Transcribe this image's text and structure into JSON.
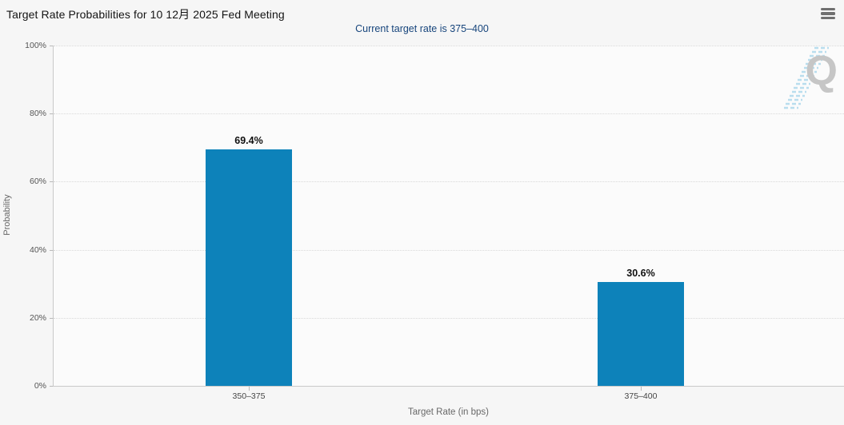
{
  "header": {
    "menu_icon": "hamburger-menu"
  },
  "colors": {
    "bar": "#0d82ba",
    "subtitle_text": "#17457c",
    "page_background": "#f6f6f6",
    "plot_background": "#fbfbfb",
    "gridline": "#d9d9d9",
    "watermark_gray": "#c6c6c6",
    "watermark_blue": "#b9ddee"
  },
  "watermark": {
    "letter": "Q"
  },
  "chart_data": {
    "type": "bar",
    "title": "Target Rate Probabilities for 10 12月 2025 Fed Meeting",
    "subtitle": "Current target rate is 375–400",
    "categories": [
      "350–375",
      "375–400"
    ],
    "values": [
      69.4,
      30.6
    ],
    "value_labels": [
      "69.4%",
      "30.6%"
    ],
    "xlabel": "Target Rate (in bps)",
    "ylabel": "Probability",
    "ylim": [
      0,
      100
    ],
    "yticks": [
      0,
      20,
      40,
      60,
      80,
      100
    ],
    "ytick_labels": [
      "0%",
      "20%",
      "40%",
      "60%",
      "80%",
      "100%"
    ],
    "grid": "horizontal-dotted",
    "legend": "none"
  }
}
